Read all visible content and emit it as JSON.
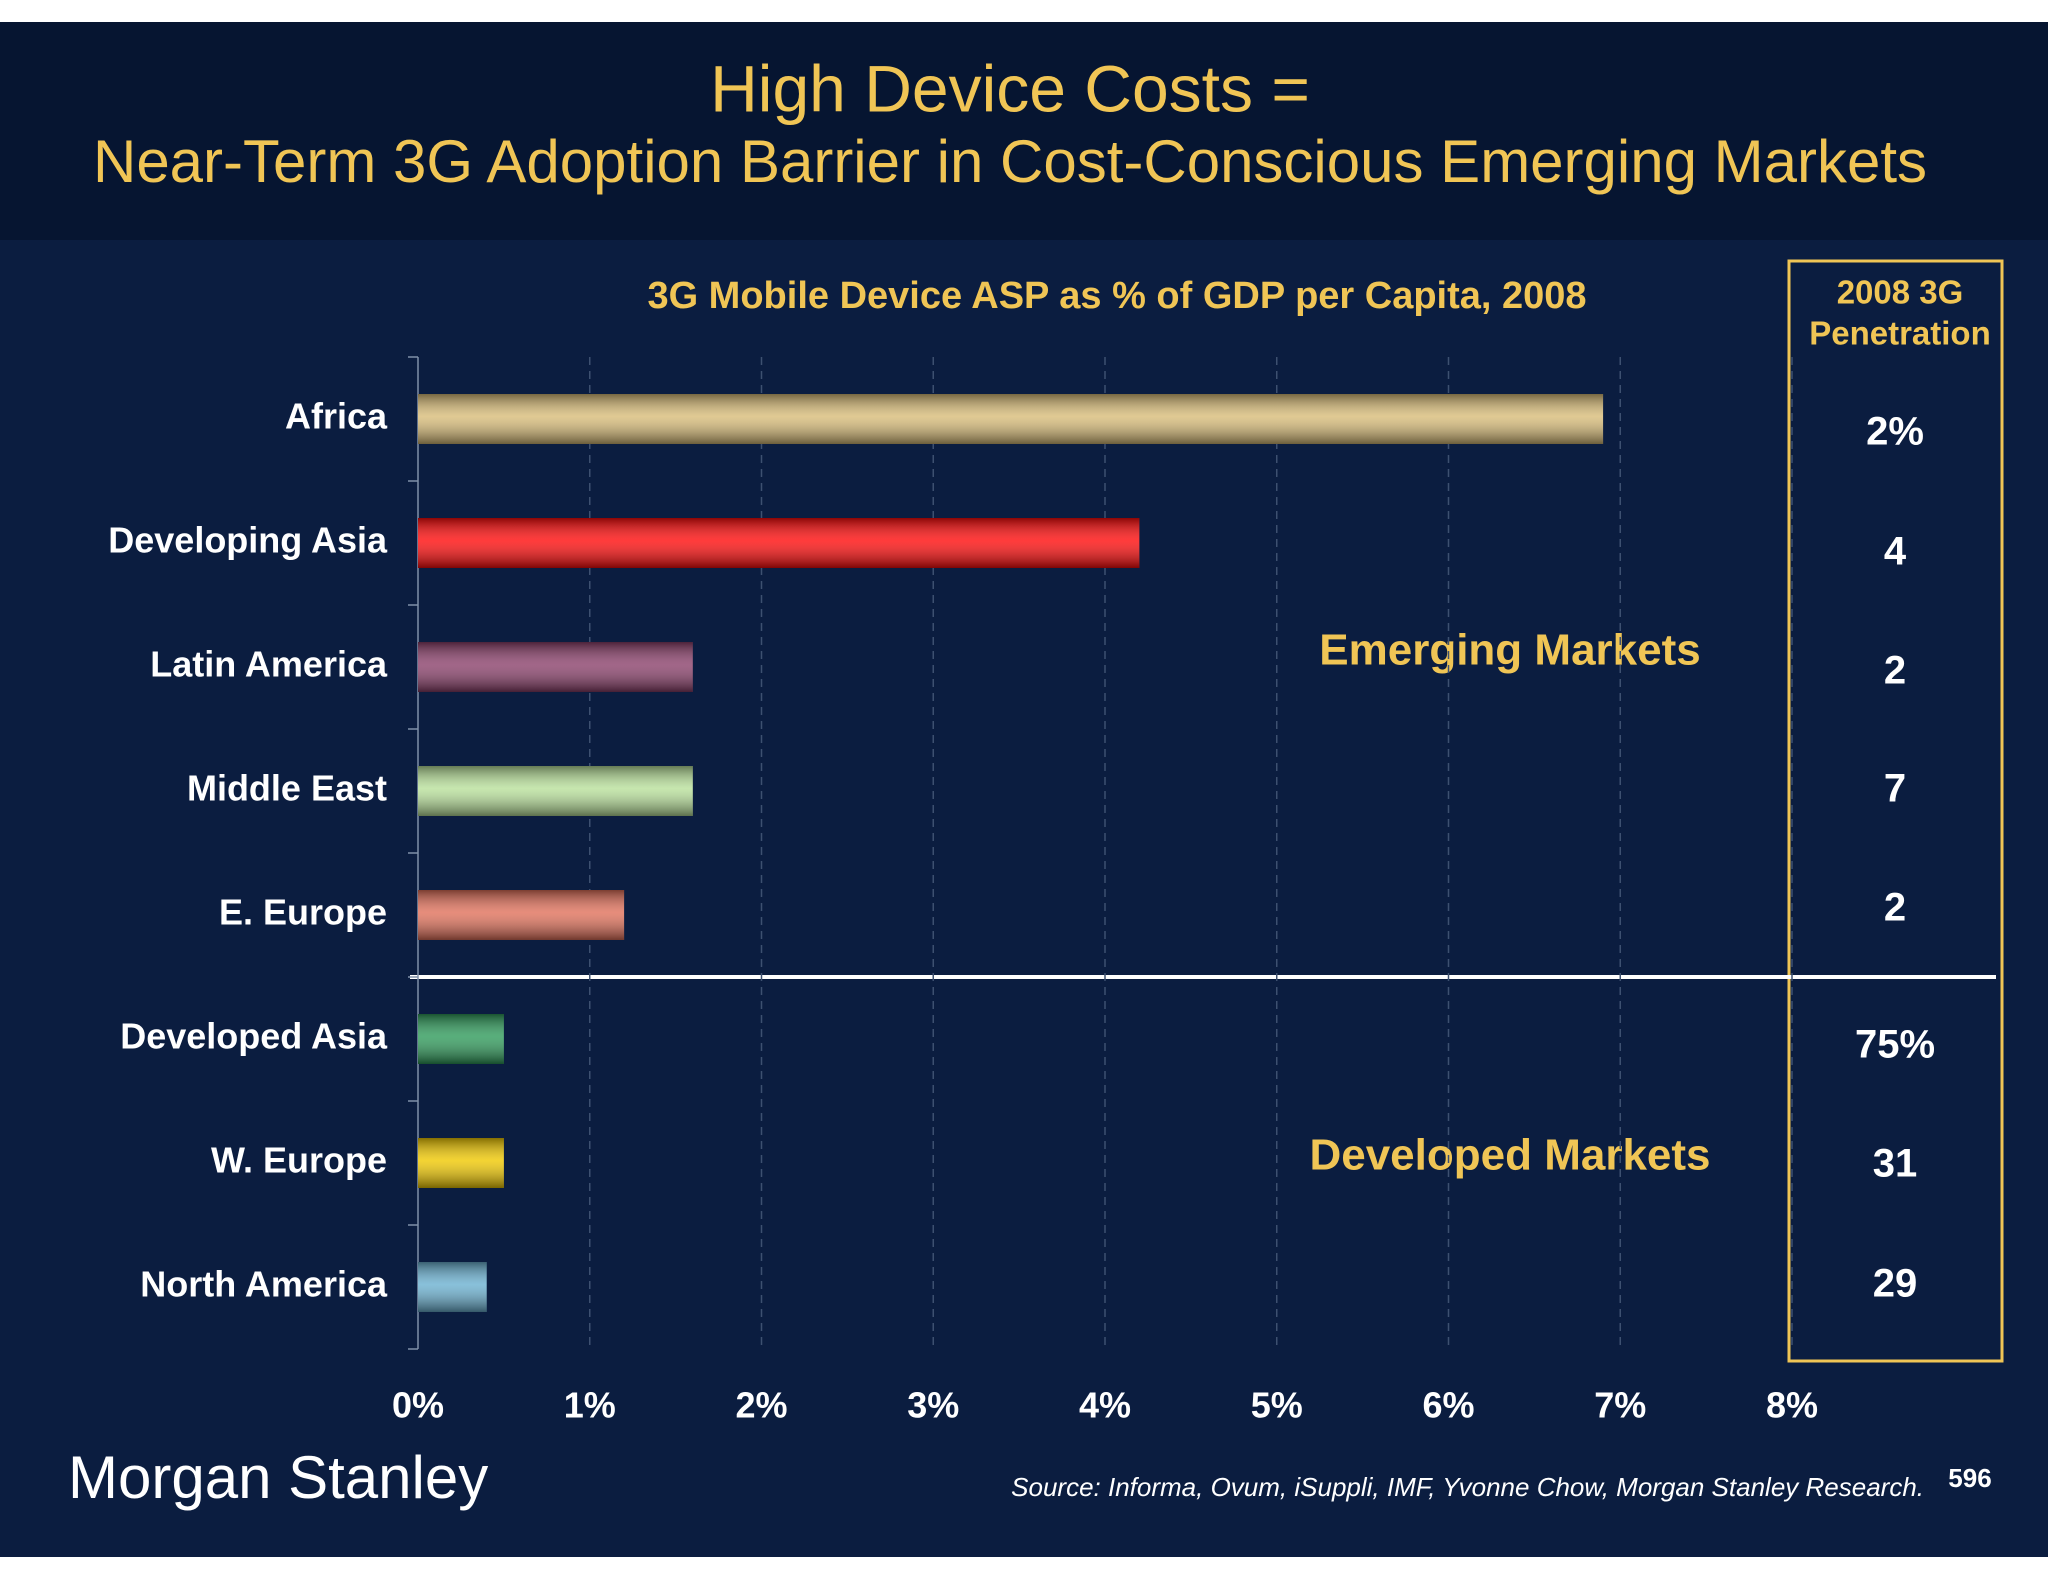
{
  "header": {
    "title": "High Device Costs =",
    "subtitle": "Near-Term 3G Adoption Barrier in Cost-Conscious Emerging Markets"
  },
  "chart_data": {
    "type": "bar",
    "orientation": "horizontal",
    "title": "3G Mobile Device ASP as % of GDP per Capita, 2008",
    "categories": [
      "Africa",
      "Developing Asia",
      "Latin America",
      "Middle East",
      "E. Europe",
      "Developed Asia",
      "W. Europe",
      "North America"
    ],
    "values": [
      6.9,
      4.2,
      1.6,
      1.6,
      1.2,
      0.5,
      0.5,
      0.4
    ],
    "colors": [
      "#d8bc78",
      "#ff0a0a",
      "#8a3f6a",
      "#b8e09a",
      "#e0705a",
      "#2e9a5a",
      "#f0c800",
      "#6ab0d0"
    ],
    "xlim": [
      0,
      8
    ],
    "xticks": [
      {
        "value": 0,
        "label": "0%"
      },
      {
        "value": 1,
        "label": "1%"
      },
      {
        "value": 2,
        "label": "2%"
      },
      {
        "value": 3,
        "label": "3%"
      },
      {
        "value": 4,
        "label": "4%"
      },
      {
        "value": 5,
        "label": "5%"
      },
      {
        "value": 6,
        "label": "6%"
      },
      {
        "value": 7,
        "label": "7%"
      },
      {
        "value": 8,
        "label": "8%"
      }
    ],
    "grid": true,
    "annotations": [
      "Emerging Markets",
      "Developed Markets"
    ]
  },
  "penetration": {
    "header": [
      "2008 3G",
      "Penetration"
    ],
    "labels": [
      "2%",
      "4",
      "2",
      "7",
      "2",
      "75%",
      "31",
      "29"
    ]
  },
  "footer": {
    "logo": "Morgan Stanley",
    "source": "Source: Informa, Ovum, iSuppli, IMF, Yvonne Chow, Morgan Stanley Research.",
    "page": "596"
  }
}
